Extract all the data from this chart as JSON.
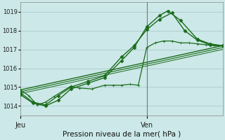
{
  "title": "Pression niveau de la mer( hPa )",
  "bg_color": "#cce8e8",
  "grid_color": "#aacccc",
  "line_color": "#1a6b1a",
  "ylim": [
    1013.5,
    1019.5
  ],
  "yticks": [
    1014,
    1015,
    1016,
    1017,
    1018,
    1019
  ],
  "xlim": [
    0,
    48
  ],
  "x_jeu": 0,
  "x_ven": 30,
  "xlabel_left": "Jeu",
  "xlabel_right": "Ven",
  "series": [
    {
      "x": [
        0,
        2,
        4,
        6,
        8,
        12,
        14,
        17,
        20,
        22,
        24,
        26,
        28,
        30,
        32,
        34,
        36,
        38,
        40,
        42,
        44,
        46,
        48
      ],
      "y": [
        1014.85,
        1014.55,
        1014.05,
        1014.2,
        1014.5,
        1015.05,
        1014.95,
        1014.9,
        1015.1,
        1015.1,
        1015.1,
        1015.15,
        1015.1,
        1017.1,
        1017.35,
        1017.45,
        1017.45,
        1017.35,
        1017.35,
        1017.3,
        1017.25,
        1017.2,
        1017.2
      ],
      "marker": "+",
      "markersize": 3.5,
      "linewidth": 0.9
    },
    {
      "x": [
        0,
        3,
        6,
        9,
        12,
        16,
        20,
        24,
        27,
        30,
        33,
        36,
        39,
        42,
        45,
        48
      ],
      "y": [
        1014.7,
        1014.2,
        1014.05,
        1014.55,
        1015.0,
        1015.3,
        1015.6,
        1016.6,
        1017.2,
        1018.05,
        1018.6,
        1018.95,
        1018.0,
        1017.5,
        1017.25,
        1017.2
      ],
      "marker": "D",
      "markersize": 2.5,
      "linewidth": 1.0
    },
    {
      "x": [
        0,
        3,
        6,
        9,
        12,
        16,
        20,
        24,
        27,
        30,
        33,
        35,
        38,
        42,
        45,
        48
      ],
      "y": [
        1014.6,
        1014.15,
        1014.0,
        1014.3,
        1014.9,
        1015.2,
        1015.5,
        1016.4,
        1017.1,
        1018.2,
        1018.8,
        1019.05,
        1018.55,
        1017.55,
        1017.3,
        1017.2
      ],
      "marker": "D",
      "markersize": 2.5,
      "linewidth": 1.0
    },
    {
      "x": [
        0,
        48
      ],
      "y": [
        1014.85,
        1017.2
      ],
      "marker": null,
      "markersize": 0,
      "linewidth": 1.0
    },
    {
      "x": [
        0,
        48
      ],
      "y": [
        1014.75,
        1017.1
      ],
      "marker": null,
      "markersize": 0,
      "linewidth": 0.8
    },
    {
      "x": [
        0,
        48
      ],
      "y": [
        1014.65,
        1017.0
      ],
      "marker": null,
      "markersize": 0,
      "linewidth": 0.7
    }
  ]
}
